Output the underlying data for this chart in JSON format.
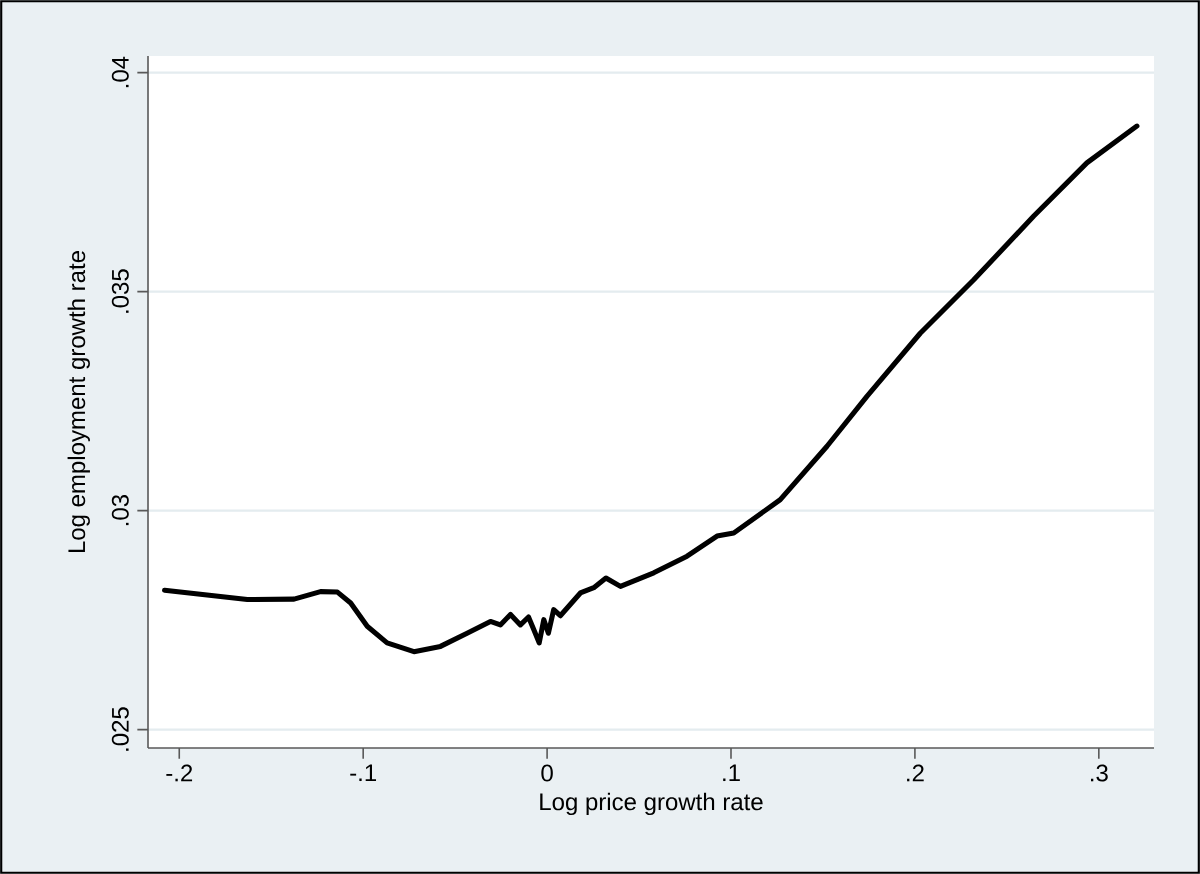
{
  "chart_data": {
    "type": "line",
    "xlabel": "Log price growth rate",
    "ylabel": "Log employment growth rate",
    "xlim": [
      -0.217,
      0.33
    ],
    "ylim": [
      0.02458,
      0.04038
    ],
    "xticks": [
      {
        "value": -0.2,
        "label": "-.2"
      },
      {
        "value": -0.1,
        "label": "-.1"
      },
      0,
      {
        "value": 0.1,
        "label": ".1"
      },
      {
        "value": 0.2,
        "label": ".2"
      },
      {
        "value": 0.3,
        "label": ".3"
      }
    ],
    "yticks": [
      {
        "value": 0.025,
        "label": ".025"
      },
      {
        "value": 0.03,
        "label": ".03"
      },
      {
        "value": 0.035,
        "label": ".035"
      },
      {
        "value": 0.04,
        "label": ".04"
      }
    ],
    "grid": "y",
    "marker": "none",
    "line_style": "solid",
    "series": [
      {
        "color": "#000000",
        "x": [
          -0.208,
          -0.163,
          -0.1376,
          -0.1232,
          -0.114,
          -0.1068,
          -0.0978,
          -0.087,
          -0.0724,
          -0.058,
          -0.0435,
          -0.0308,
          -0.0254,
          -0.0199,
          -0.0145,
          -0.0101,
          -0.0072,
          -0.0043,
          -0.0018,
          0.0007,
          0.0036,
          0.0072,
          0.0181,
          0.0254,
          0.032,
          0.0399,
          0.058,
          0.0761,
          0.0924,
          0.1015,
          0.1268,
          0.1522,
          0.1739,
          0.2029,
          0.232,
          0.2645,
          0.2935,
          0.3207
        ],
        "values": [
          0.02818,
          0.02797,
          0.02798,
          0.02815,
          0.02814,
          0.02789,
          0.02736,
          0.02698,
          0.02678,
          0.0269,
          0.0272,
          0.02747,
          0.02739,
          0.02763,
          0.02739,
          0.02757,
          0.02728,
          0.02698,
          0.02751,
          0.0272,
          0.02774,
          0.0276,
          0.02812,
          0.02824,
          0.02846,
          0.02827,
          0.02858,
          0.02896,
          0.02942,
          0.02949,
          0.03025,
          0.03147,
          0.03261,
          0.03405,
          0.03527,
          0.03672,
          0.03794,
          0.03878
        ]
      }
    ]
  }
}
